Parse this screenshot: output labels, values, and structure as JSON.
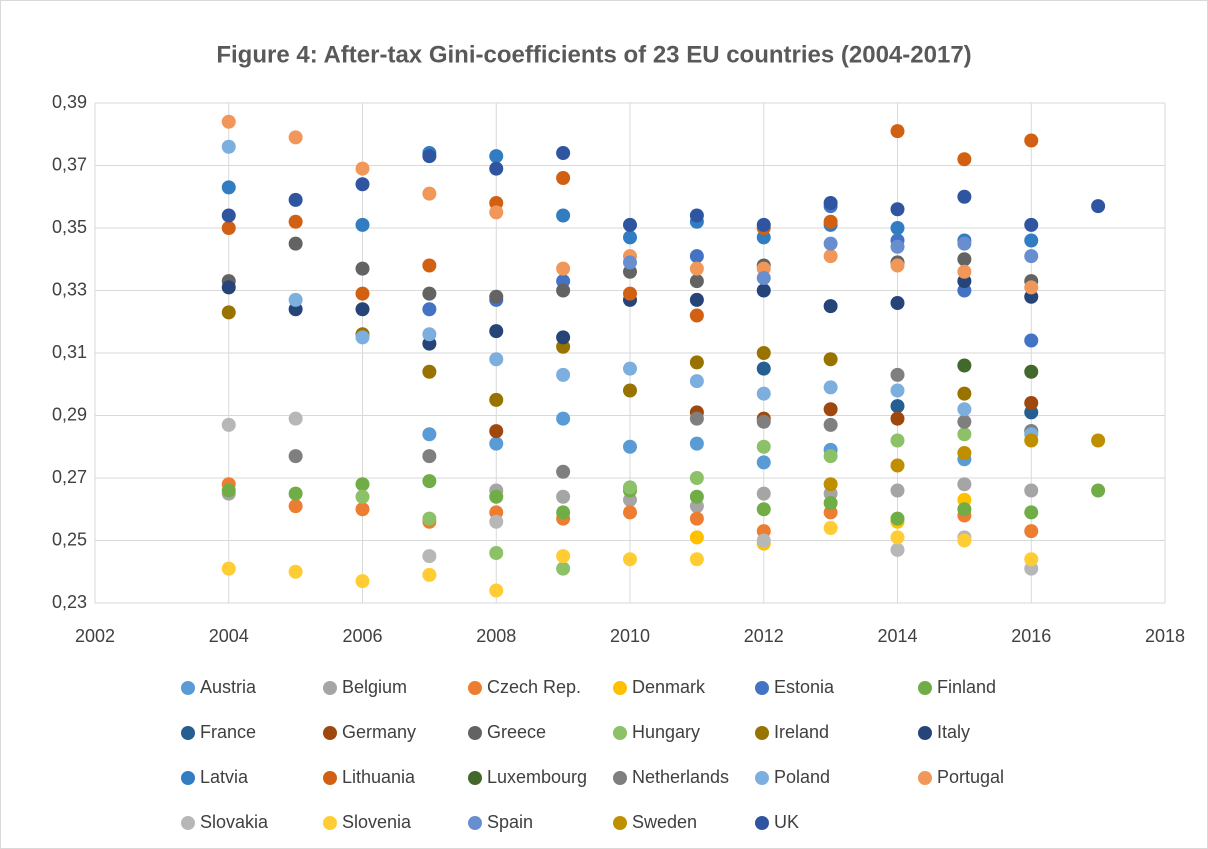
{
  "chart_data": {
    "type": "scatter",
    "title": "Figure 4: After-tax Gini-coefficients of 23 EU countries (2004-2017)",
    "x": [
      2004,
      2005,
      2006,
      2007,
      2008,
      2009,
      2010,
      2011,
      2012,
      2013,
      2014,
      2015,
      2016,
      2017
    ],
    "xlim": [
      2002,
      2018
    ],
    "xticks": [
      2002,
      2004,
      2006,
      2008,
      2010,
      2012,
      2014,
      2016,
      2018
    ],
    "ylim": [
      0.23,
      0.39
    ],
    "yticks": [
      {
        "value": 0.23,
        "label": "0,23"
      },
      {
        "value": 0.25,
        "label": "0,25"
      },
      {
        "value": 0.27,
        "label": "0,27"
      },
      {
        "value": 0.29,
        "label": "0,29"
      },
      {
        "value": 0.31,
        "label": "0,31"
      },
      {
        "value": 0.33,
        "label": "0,33"
      },
      {
        "value": 0.35,
        "label": "0,35"
      },
      {
        "value": 0.37,
        "label": "0,37"
      },
      {
        "value": 0.39,
        "label": "0,39"
      }
    ],
    "grid": true,
    "legend": "bottom",
    "series": [
      {
        "name": "Austria",
        "color": "#5b9bd5",
        "values": [
          null,
          null,
          null,
          0.284,
          0.281,
          0.289,
          0.28,
          0.281,
          0.275,
          0.279,
          null,
          0.276,
          0.285,
          null
        ]
      },
      {
        "name": "Belgium",
        "color": "#a5a5a5",
        "values": [
          0.265,
          null,
          null,
          null,
          0.266,
          0.264,
          0.263,
          0.261,
          0.265,
          0.265,
          0.266,
          0.268,
          0.266,
          null
        ]
      },
      {
        "name": "Czech Rep.",
        "color": "#ed7d31",
        "values": [
          0.268,
          0.261,
          0.26,
          0.256,
          0.259,
          0.257,
          0.259,
          0.257,
          0.253,
          0.259,
          null,
          0.258,
          0.253,
          null
        ]
      },
      {
        "name": "Denmark",
        "color": "#ffc000",
        "values": [
          null,
          null,
          null,
          null,
          null,
          null,
          null,
          0.251,
          0.249,
          null,
          0.256,
          0.263,
          null,
          null
        ]
      },
      {
        "name": "Estonia",
        "color": "#4472c4",
        "values": [
          null,
          null,
          null,
          0.324,
          0.327,
          0.333,
          null,
          0.341,
          null,
          0.357,
          0.346,
          0.33,
          0.314,
          null
        ]
      },
      {
        "name": "Finland",
        "color": "#70ad47",
        "values": [
          0.266,
          0.265,
          0.268,
          0.269,
          0.264,
          0.259,
          0.266,
          0.264,
          0.26,
          0.262,
          0.257,
          0.26,
          0.259,
          0.266
        ]
      },
      {
        "name": "France",
        "color": "#255e91",
        "values": [
          null,
          null,
          null,
          null,
          null,
          null,
          null,
          null,
          0.305,
          null,
          0.293,
          null,
          0.291,
          null
        ]
      },
      {
        "name": "Germany",
        "color": "#9e480e",
        "values": [
          null,
          null,
          null,
          null,
          0.285,
          null,
          null,
          0.291,
          0.289,
          0.292,
          0.289,
          null,
          0.294,
          null
        ]
      },
      {
        "name": "Greece",
        "color": "#636363",
        "values": [
          0.333,
          0.345,
          0.337,
          0.329,
          0.328,
          0.33,
          0.336,
          0.333,
          0.338,
          null,
          0.339,
          0.34,
          0.333,
          null
        ]
      },
      {
        "name": "Hungary",
        "color": "#8cc168",
        "values": [
          null,
          null,
          0.264,
          0.257,
          0.246,
          0.241,
          0.267,
          0.27,
          0.28,
          0.277,
          0.282,
          0.284,
          null,
          null
        ]
      },
      {
        "name": "Ireland",
        "color": "#997300",
        "values": [
          0.323,
          null,
          0.316,
          0.304,
          0.295,
          0.312,
          0.298,
          0.307,
          0.31,
          0.308,
          null,
          0.297,
          null,
          null
        ]
      },
      {
        "name": "Italy",
        "color": "#264478",
        "values": [
          0.331,
          0.324,
          0.324,
          0.313,
          0.317,
          0.315,
          0.327,
          0.327,
          0.33,
          0.325,
          0.326,
          0.333,
          0.328,
          null
        ]
      },
      {
        "name": "Latvia",
        "color": "#327dc2",
        "values": [
          0.363,
          null,
          0.351,
          0.374,
          0.373,
          0.354,
          0.347,
          0.352,
          0.347,
          0.351,
          0.35,
          0.346,
          0.346,
          null
        ]
      },
      {
        "name": "Lithuania",
        "color": "#d26012",
        "values": [
          0.35,
          0.352,
          0.329,
          0.338,
          0.358,
          0.366,
          0.329,
          0.322,
          0.35,
          0.352,
          0.381,
          0.372,
          0.378,
          null
        ]
      },
      {
        "name": "Luxembourg",
        "color": "#43682b",
        "values": [
          null,
          null,
          null,
          null,
          null,
          null,
          null,
          null,
          null,
          null,
          null,
          0.306,
          0.304,
          null
        ]
      },
      {
        "name": "Netherlands",
        "color": "#7f7f7f",
        "values": [
          null,
          0.277,
          null,
          0.277,
          null,
          0.272,
          null,
          0.289,
          0.288,
          0.287,
          0.303,
          0.288,
          0.285,
          null
        ]
      },
      {
        "name": "Poland",
        "color": "#7cafdd",
        "values": [
          0.376,
          0.327,
          0.315,
          0.316,
          0.308,
          0.303,
          0.305,
          0.301,
          0.297,
          0.299,
          0.298,
          0.292,
          0.284,
          null
        ]
      },
      {
        "name": "Portugal",
        "color": "#f1975a",
        "values": [
          0.384,
          0.379,
          0.369,
          0.361,
          0.355,
          0.337,
          0.341,
          0.337,
          0.337,
          0.341,
          0.338,
          0.336,
          0.331,
          null
        ]
      },
      {
        "name": "Slovakia",
        "color": "#b7b7b7",
        "values": [
          0.287,
          0.289,
          null,
          0.245,
          0.256,
          null,
          null,
          null,
          0.25,
          null,
          0.247,
          0.251,
          0.241,
          null
        ]
      },
      {
        "name": "Slovenia",
        "color": "#ffcd33",
        "values": [
          0.241,
          0.24,
          0.237,
          0.239,
          0.234,
          0.245,
          0.244,
          0.244,
          null,
          0.254,
          0.251,
          0.25,
          0.244,
          null
        ]
      },
      {
        "name": "Spain",
        "color": "#698ed0",
        "values": [
          null,
          null,
          null,
          null,
          null,
          null,
          0.339,
          null,
          0.334,
          0.345,
          0.344,
          0.345,
          0.341,
          null
        ]
      },
      {
        "name": "Sweden",
        "color": "#bf8f00",
        "values": [
          null,
          null,
          null,
          null,
          null,
          null,
          null,
          null,
          null,
          0.268,
          0.274,
          0.278,
          0.282,
          0.282
        ]
      },
      {
        "name": "UK",
        "color": "#2f55a0",
        "values": [
          0.354,
          0.359,
          0.364,
          0.373,
          0.369,
          0.374,
          0.351,
          0.354,
          0.351,
          0.358,
          0.356,
          0.36,
          0.351,
          0.357
        ]
      }
    ]
  }
}
